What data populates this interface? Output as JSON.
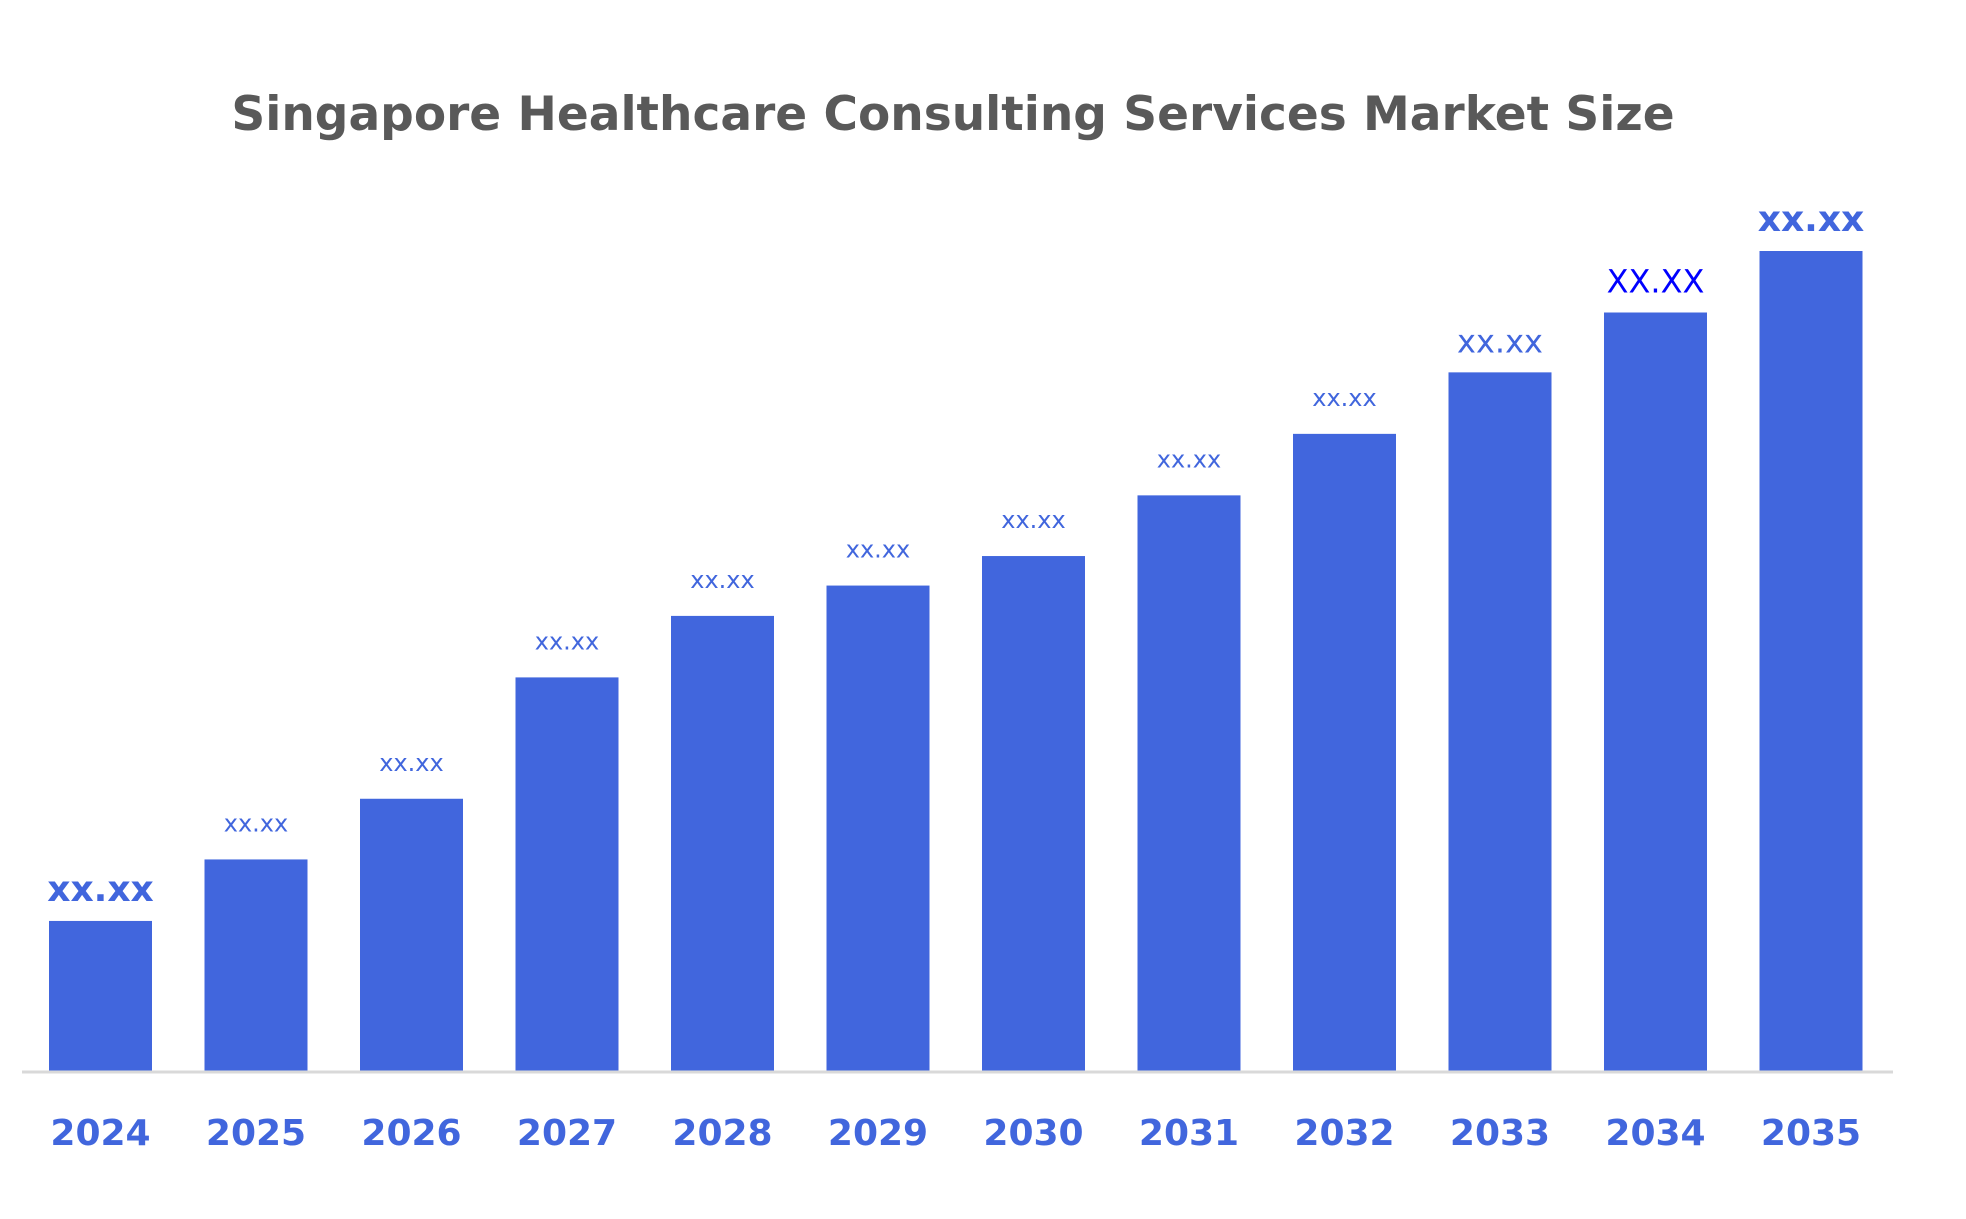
{
  "chart_data": {
    "type": "bar",
    "title": "Singapore Healthcare Consulting Services Market Size",
    "xlabel": "",
    "ylabel": "",
    "categories": [
      "2024",
      "2025",
      "2026",
      "2027",
      "2028",
      "2029",
      "2030",
      "2031",
      "2032",
      "2033",
      "2034",
      "2035"
    ],
    "values": [
      18.3,
      25.8,
      33.2,
      48.0,
      55.5,
      59.2,
      62.8,
      70.2,
      77.7,
      85.2,
      92.5,
      100
    ],
    "data_labels": [
      "xx.xx",
      "xx.xx",
      "xx.xx",
      "xx.xx",
      "xx.xx",
      "xx.xx",
      "xx.xx",
      "xx.xx",
      "xx.xx",
      "xx.xx",
      "XX.XX",
      "xx.xx"
    ],
    "ylim": [
      0,
      100
    ],
    "y_axis_visible": false,
    "grid": false,
    "legend": "none",
    "colors": {
      "bar": "#4166DD",
      "title": "#595959",
      "year_label": "#4166DD",
      "axis_line": "#D9D9D9",
      "data_label": "#4166DD",
      "data_label_highlight": "#0000FF"
    },
    "data_label_colors": [
      "#4166DD",
      "#4166DD",
      "#4166DD",
      "#4166DD",
      "#4166DD",
      "#4166DD",
      "#4166DD",
      "#4166DD",
      "#4166DD",
      "#4166DD",
      "#0000FF",
      "#4166DD"
    ]
  }
}
